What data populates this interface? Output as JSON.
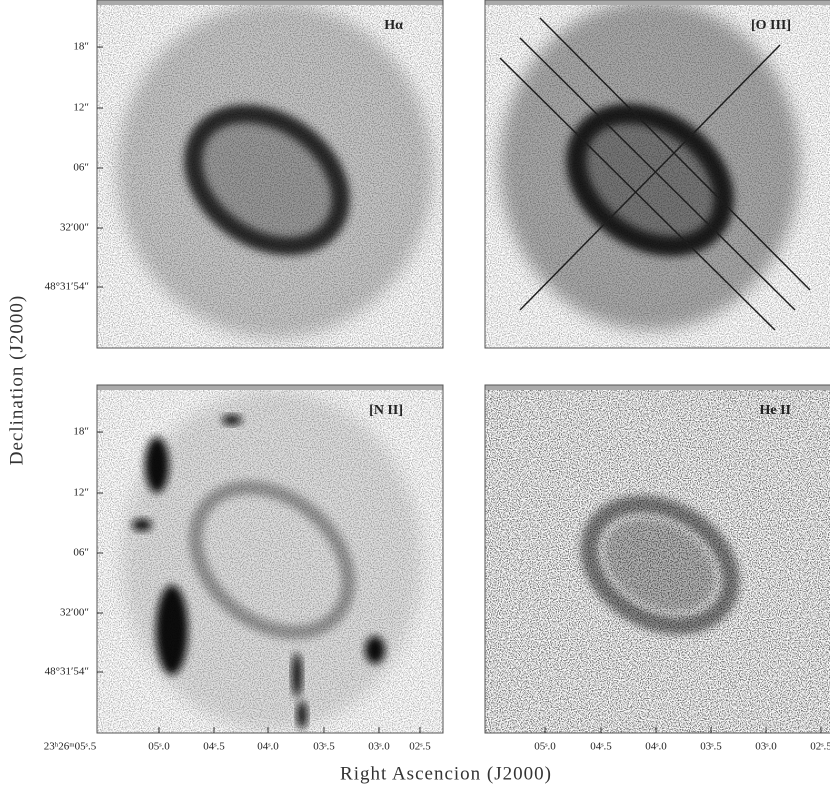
{
  "figure": {
    "y_axis_label": "Declination (J2000)",
    "x_axis_label": "Right Ascencion (J2000)",
    "panels": [
      {
        "label": "Hα",
        "y_ticks": [
          "18″",
          "12″",
          "06″",
          "32′00″",
          "48°31′54″"
        ],
        "x_ticks": []
      },
      {
        "label": "[O III]",
        "y_ticks": [],
        "x_ticks": []
      },
      {
        "label": "[N II]",
        "y_ticks": [
          "18″",
          "12″",
          "06″",
          "32′00″",
          "48°31′54″"
        ],
        "x_ticks": [
          "23ʰ26ᵐ05ˢ.5",
          "05ˢ.0",
          "04ˢ.5",
          "04ˢ.0",
          "03ˢ.5",
          "03ˢ.0",
          "02ˢ.5"
        ]
      },
      {
        "label": "He II",
        "y_ticks": [],
        "x_ticks": [
          "05ˢ.0",
          "04ˢ.5",
          "04ˢ.0",
          "03ˢ.5",
          "03ˢ.0",
          "02ˢ.5"
        ]
      }
    ]
  }
}
